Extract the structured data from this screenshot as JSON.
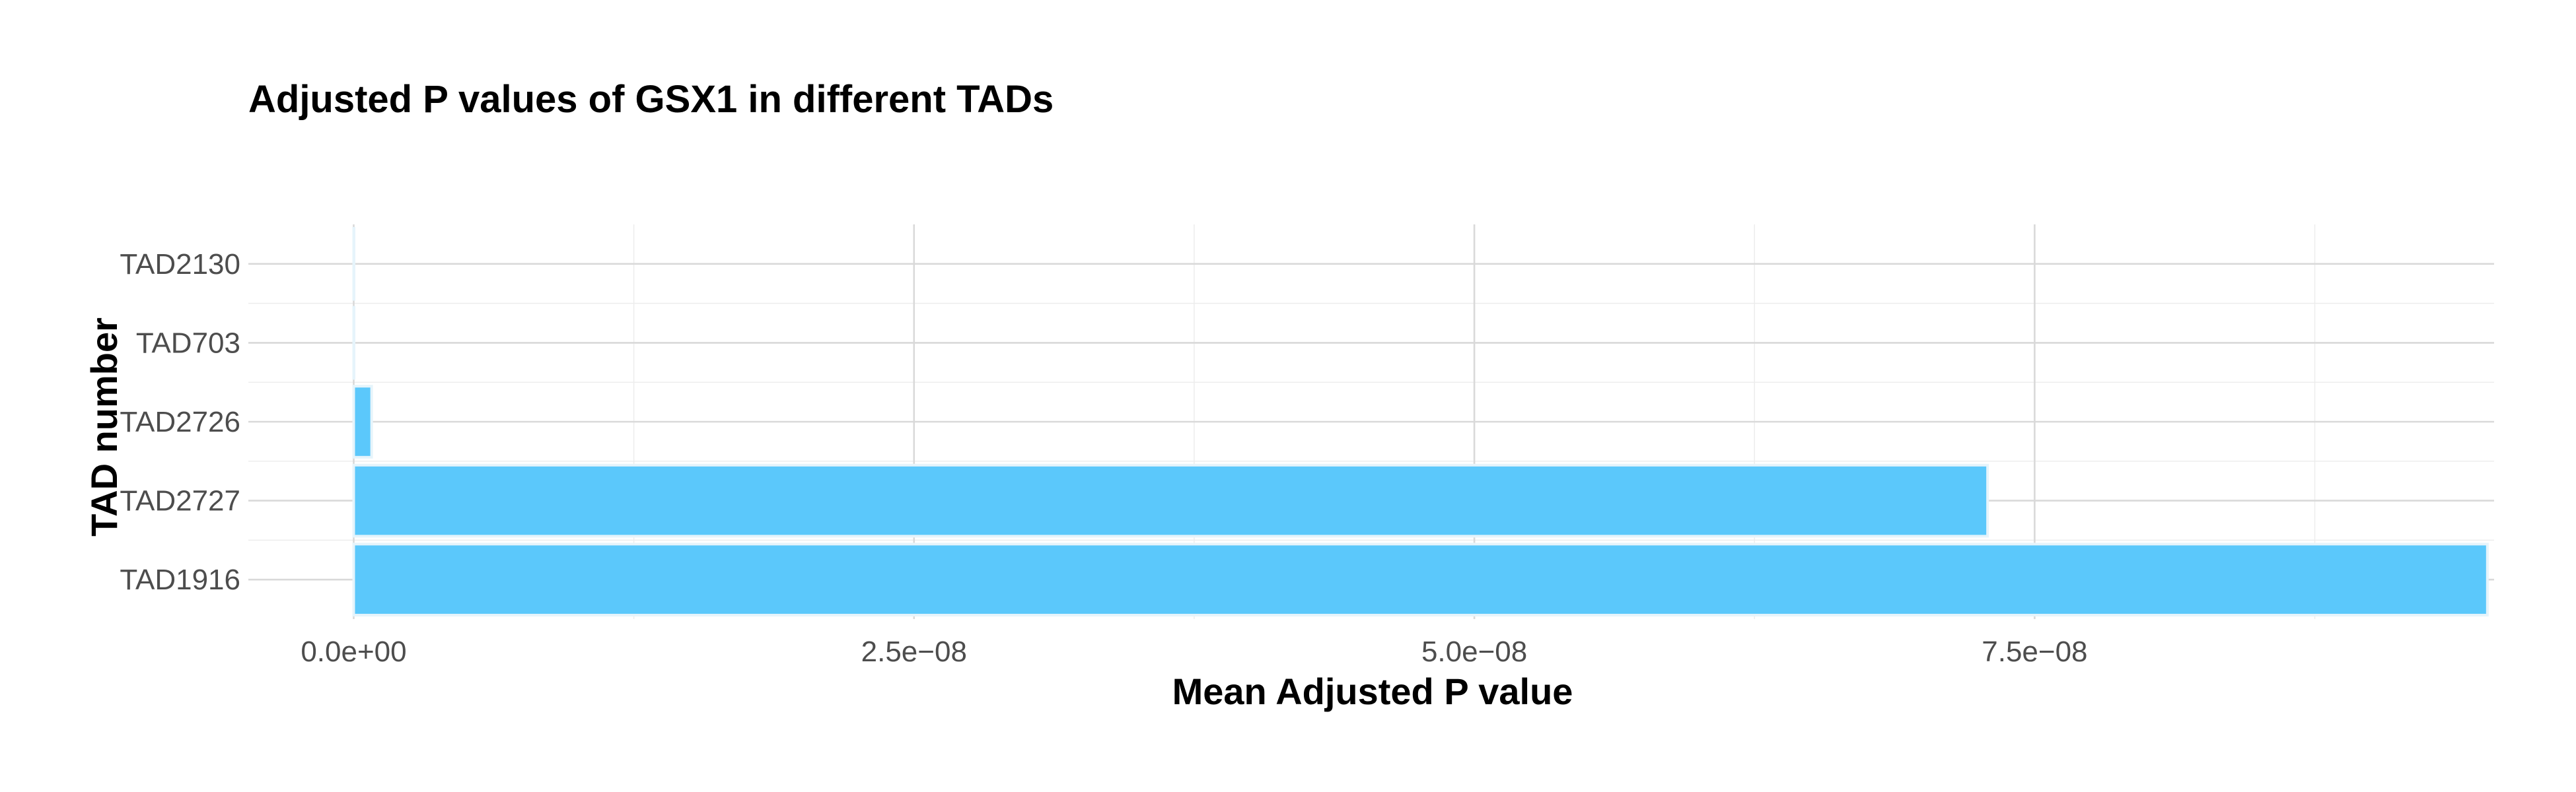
{
  "chart_data": {
    "type": "bar",
    "orientation": "horizontal",
    "title": "Adjusted P values of GSX1 in different TADs",
    "xlabel": "Mean Adjusted P value",
    "ylabel": "TAD number",
    "categories": [
      "TAD2130",
      "TAD703",
      "TAD2726",
      "TAD2727",
      "TAD1916"
    ],
    "values": [
      1e-11,
      1e-11,
      8e-10,
      7.29e-08,
      9.52e-08
    ],
    "xlim": [
      -4.7e-09,
      9.55e-08
    ],
    "xticks": [
      0,
      2.5e-08,
      5e-08,
      7.5e-08
    ],
    "xtick_labels": [
      "0.0e+00",
      "2.5e−08",
      "5.0e−08",
      "7.5e−08"
    ],
    "grid": true,
    "legend": "none",
    "bar_color": "#5bc8fb",
    "bar_outline_color": "#e6f4fb"
  }
}
